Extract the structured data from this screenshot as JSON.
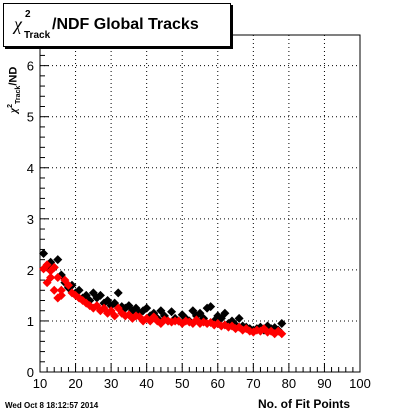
{
  "title": {
    "symbol": "χ",
    "superscript": "2",
    "subscript": "Track",
    "text": "/NDF  Global Tracks"
  },
  "axis_text": {
    "ylabel_symbol": "χ",
    "ylabel_sup": "2",
    "ylabel_sub": "Track",
    "ylabel_rest": "/ND",
    "xlabel": "No. of Fit Points"
  },
  "timestamp": "Wed Oct  8 18:12:57 2014",
  "colors": {
    "series_black": "#000000",
    "series_red": "#ff0000",
    "grid": "#000000",
    "background": "#ffffff"
  },
  "chart_data": {
    "type": "scatter",
    "xlabel": "No. of Fit Points",
    "ylabel": "χ²Track/ND",
    "xlim": [
      10,
      100
    ],
    "ylim": [
      0,
      6.6
    ],
    "xticks": [
      10,
      20,
      30,
      40,
      50,
      60,
      70,
      80,
      90,
      100
    ],
    "yticks": [
      0,
      1,
      2,
      3,
      4,
      5,
      6
    ],
    "grid": true,
    "marker": "diamond",
    "series": [
      {
        "color": "#000000",
        "points": [
          [
            11,
            2.32
          ],
          [
            12,
            2.05
          ],
          [
            13,
            2.15
          ],
          [
            14,
            2.05
          ],
          [
            15,
            2.2
          ],
          [
            16,
            1.9
          ],
          [
            17,
            1.75
          ],
          [
            18,
            1.65
          ],
          [
            19,
            1.7
          ],
          [
            20,
            1.55
          ],
          [
            21,
            1.6
          ],
          [
            22,
            1.45
          ],
          [
            23,
            1.5
          ],
          [
            24,
            1.4
          ],
          [
            25,
            1.55
          ],
          [
            26,
            1.45
          ],
          [
            27,
            1.5
          ],
          [
            28,
            1.35
          ],
          [
            29,
            1.4
          ],
          [
            30,
            1.3
          ],
          [
            31,
            1.35
          ],
          [
            32,
            1.55
          ],
          [
            33,
            1.28
          ],
          [
            34,
            1.25
          ],
          [
            35,
            1.3
          ],
          [
            36,
            1.2
          ],
          [
            37,
            1.25
          ],
          [
            38,
            1.15
          ],
          [
            39,
            1.2
          ],
          [
            40,
            1.25
          ],
          [
            41,
            1.1
          ],
          [
            42,
            1.15
          ],
          [
            43,
            1.05
          ],
          [
            44,
            1.2
          ],
          [
            45,
            1.1
          ],
          [
            46,
            1.0
          ],
          [
            47,
            1.18
          ],
          [
            48,
            1.05
          ],
          [
            49,
            1.0
          ],
          [
            50,
            1.12
          ],
          [
            51,
            1.05
          ],
          [
            52,
            1.0
          ],
          [
            53,
            1.2
          ],
          [
            54,
            1.1
          ],
          [
            55,
            1.15
          ],
          [
            56,
            1.05
          ],
          [
            57,
            1.25
          ],
          [
            58,
            1.28
          ],
          [
            59,
            1.0
          ],
          [
            60,
            1.1
          ],
          [
            61,
            1.05
          ],
          [
            62,
            1.15
          ],
          [
            63,
            0.95
          ],
          [
            64,
            1.0
          ],
          [
            65,
            0.92
          ],
          [
            66,
            1.05
          ],
          [
            67,
            0.9
          ],
          [
            68,
            0.88
          ],
          [
            69,
            0.85
          ],
          [
            70,
            0.82
          ],
          [
            71,
            0.85
          ],
          [
            72,
            0.88
          ],
          [
            73,
            0.82
          ],
          [
            74,
            0.9
          ],
          [
            75,
            0.85
          ],
          [
            76,
            0.87
          ],
          [
            77,
            0.82
          ],
          [
            78,
            0.95
          ]
        ]
      },
      {
        "color": "#ff0000",
        "points": [
          [
            11,
            2.02
          ],
          [
            12,
            2.1
          ],
          [
            13,
            1.98
          ],
          [
            14,
            2.05
          ],
          [
            15,
            1.85
          ],
          [
            16,
            1.6
          ],
          [
            17,
            1.8
          ],
          [
            18,
            1.7
          ],
          [
            19,
            1.55
          ],
          [
            20,
            1.5
          ],
          [
            21,
            1.45
          ],
          [
            22,
            1.4
          ],
          [
            23,
            1.35
          ],
          [
            24,
            1.3
          ],
          [
            25,
            1.25
          ],
          [
            26,
            1.3
          ],
          [
            27,
            1.2
          ],
          [
            28,
            1.25
          ],
          [
            29,
            1.15
          ],
          [
            30,
            1.2
          ],
          [
            31,
            1.1
          ],
          [
            32,
            1.25
          ],
          [
            33,
            1.15
          ],
          [
            34,
            1.1
          ],
          [
            35,
            1.12
          ],
          [
            36,
            1.05
          ],
          [
            37,
            1.1
          ],
          [
            38,
            1.08
          ],
          [
            39,
            1.0
          ],
          [
            40,
            1.05
          ],
          [
            41,
            1.0
          ],
          [
            42,
            1.08
          ],
          [
            43,
            1.0
          ],
          [
            44,
            0.95
          ],
          [
            45,
            1.02
          ],
          [
            46,
            1.0
          ],
          [
            47,
            0.98
          ],
          [
            48,
            1.0
          ],
          [
            49,
            1.0
          ],
          [
            50,
            0.95
          ],
          [
            51,
            1.0
          ],
          [
            52,
            0.98
          ],
          [
            53,
            0.95
          ],
          [
            54,
            1.02
          ],
          [
            55,
            0.95
          ],
          [
            56,
            0.98
          ],
          [
            57,
            0.95
          ],
          [
            58,
            0.97
          ],
          [
            59,
            0.92
          ],
          [
            60,
            0.95
          ],
          [
            61,
            0.9
          ],
          [
            62,
            0.92
          ],
          [
            63,
            0.88
          ],
          [
            64,
            0.9
          ],
          [
            65,
            0.85
          ],
          [
            66,
            0.88
          ],
          [
            67,
            0.82
          ],
          [
            68,
            0.85
          ],
          [
            69,
            0.8
          ],
          [
            70,
            0.78
          ],
          [
            71,
            0.82
          ],
          [
            72,
            0.8
          ],
          [
            73,
            0.85
          ],
          [
            74,
            0.78
          ],
          [
            75,
            0.8
          ],
          [
            76,
            0.75
          ],
          [
            77,
            0.8
          ],
          [
            78,
            0.75
          ],
          [
            12,
            1.75
          ],
          [
            13,
            1.85
          ],
          [
            14,
            1.6
          ],
          [
            15,
            1.45
          ],
          [
            16,
            1.5
          ]
        ]
      }
    ]
  }
}
